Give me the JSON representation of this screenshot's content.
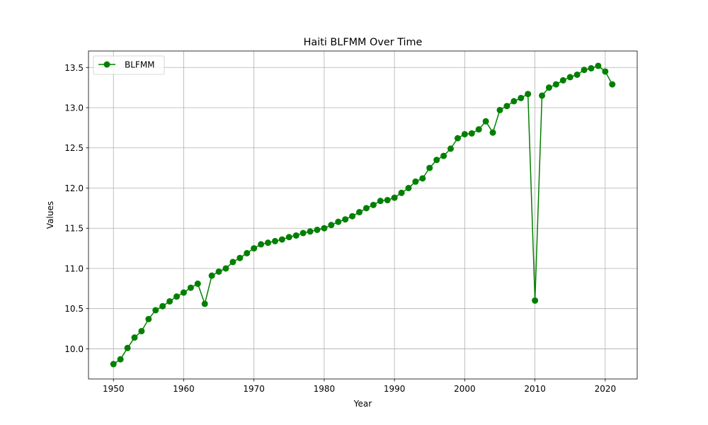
{
  "chart_data": {
    "type": "line",
    "title": "Haiti BLFMM Over Time",
    "xlabel": "Year",
    "ylabel": "Values",
    "xlim": [
      1946.45,
      2024.55
    ],
    "ylim": [
      9.625,
      13.705
    ],
    "xticks": [
      1950,
      1960,
      1970,
      1980,
      1990,
      2000,
      2010,
      2020
    ],
    "yticks": [
      10.0,
      10.5,
      11.0,
      11.5,
      12.0,
      12.5,
      13.0,
      13.5
    ],
    "grid": true,
    "legend_position": "top-left",
    "series": [
      {
        "name": "BLFMM",
        "color": "#008000",
        "marker": "circle",
        "x": [
          1950,
          1951,
          1952,
          1953,
          1954,
          1955,
          1956,
          1957,
          1958,
          1959,
          1960,
          1961,
          1962,
          1963,
          1964,
          1965,
          1966,
          1967,
          1968,
          1969,
          1970,
          1971,
          1972,
          1973,
          1974,
          1975,
          1976,
          1977,
          1978,
          1979,
          1980,
          1981,
          1982,
          1983,
          1984,
          1985,
          1986,
          1987,
          1988,
          1989,
          1990,
          1991,
          1992,
          1993,
          1994,
          1995,
          1996,
          1997,
          1998,
          1999,
          2000,
          2001,
          2002,
          2003,
          2004,
          2005,
          2006,
          2007,
          2008,
          2009,
          2010,
          2011,
          2012,
          2013,
          2014,
          2015,
          2016,
          2017,
          2018,
          2019,
          2020,
          2021
        ],
        "y": [
          9.81,
          9.87,
          10.01,
          10.14,
          10.22,
          10.37,
          10.48,
          10.53,
          10.59,
          10.65,
          10.7,
          10.76,
          10.81,
          10.56,
          10.91,
          10.96,
          11.0,
          11.08,
          11.13,
          11.19,
          11.25,
          11.3,
          11.32,
          11.34,
          11.36,
          11.39,
          11.41,
          11.44,
          11.46,
          11.48,
          11.5,
          11.54,
          11.58,
          11.61,
          11.65,
          11.7,
          11.75,
          11.79,
          11.84,
          11.85,
          11.88,
          11.94,
          12.0,
          12.08,
          12.12,
          12.25,
          12.35,
          12.4,
          12.49,
          12.62,
          12.67,
          12.68,
          12.73,
          12.83,
          12.69,
          12.97,
          13.02,
          13.08,
          13.12,
          13.17,
          10.6,
          13.15,
          13.25,
          13.29,
          13.34,
          13.38,
          13.41,
          13.47,
          13.49,
          13.52,
          13.45,
          13.29
        ]
      }
    ]
  }
}
